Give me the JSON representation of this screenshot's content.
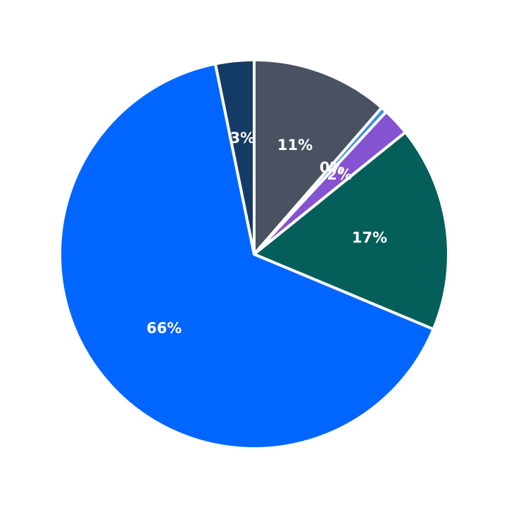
{
  "chart_data": {
    "type": "pie",
    "title": "",
    "start_angle_deg": 90,
    "direction": "clockwise",
    "slices": [
      {
        "label": "11%",
        "value": 11.4,
        "color": "#4a5261"
      },
      {
        "label": "0%",
        "value": 0.5,
        "color": "#3b8ee0"
      },
      {
        "label": "2%",
        "value": 2.3,
        "color": "#8552d2"
      },
      {
        "label": "17%",
        "value": 17.1,
        "color": "#045f5b"
      },
      {
        "label": "66%",
        "value": 65.5,
        "color": "#0066ff"
      },
      {
        "label": "3%",
        "value": 3.2,
        "color": "#143a66"
      }
    ],
    "legend": false,
    "data_labels": true
  }
}
